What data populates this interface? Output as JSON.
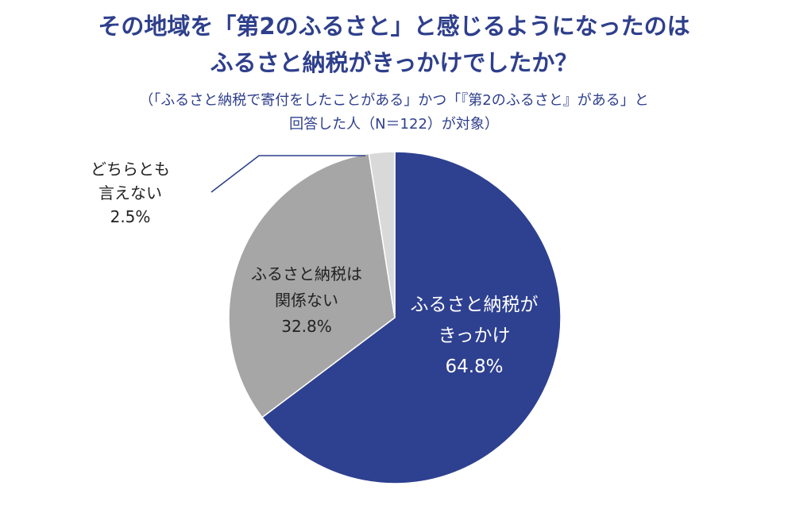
{
  "title": {
    "line1": "その地域を「第2のふるさと」と感じるようになったのは",
    "line2": "ふるさと納税がきっかけでしたか？"
  },
  "subtitle": {
    "line1": "（「ふるさと納税で寄付をしたことがある」かつ「『第2のふるさと』がある」と",
    "line2": "回答した人（N＝122）が対象）"
  },
  "chart_data": {
    "type": "pie",
    "slices": [
      {
        "label_lines": [
          "ふるさと納税が",
          "きっかけ"
        ],
        "value": 64.8,
        "value_label": "64.8%",
        "color": "#2e4090",
        "text_color": "#ffffff"
      },
      {
        "label_lines": [
          "ふるさと納税は",
          "関係ない"
        ],
        "value": 32.8,
        "value_label": "32.8%",
        "color": "#a6a6a6",
        "text_color": "#222222"
      },
      {
        "label_lines": [
          "どちらとも",
          "言えない"
        ],
        "value": 2.5,
        "value_label": "2.5%",
        "color": "#d9d9d9",
        "text_color": "#222222"
      }
    ]
  }
}
